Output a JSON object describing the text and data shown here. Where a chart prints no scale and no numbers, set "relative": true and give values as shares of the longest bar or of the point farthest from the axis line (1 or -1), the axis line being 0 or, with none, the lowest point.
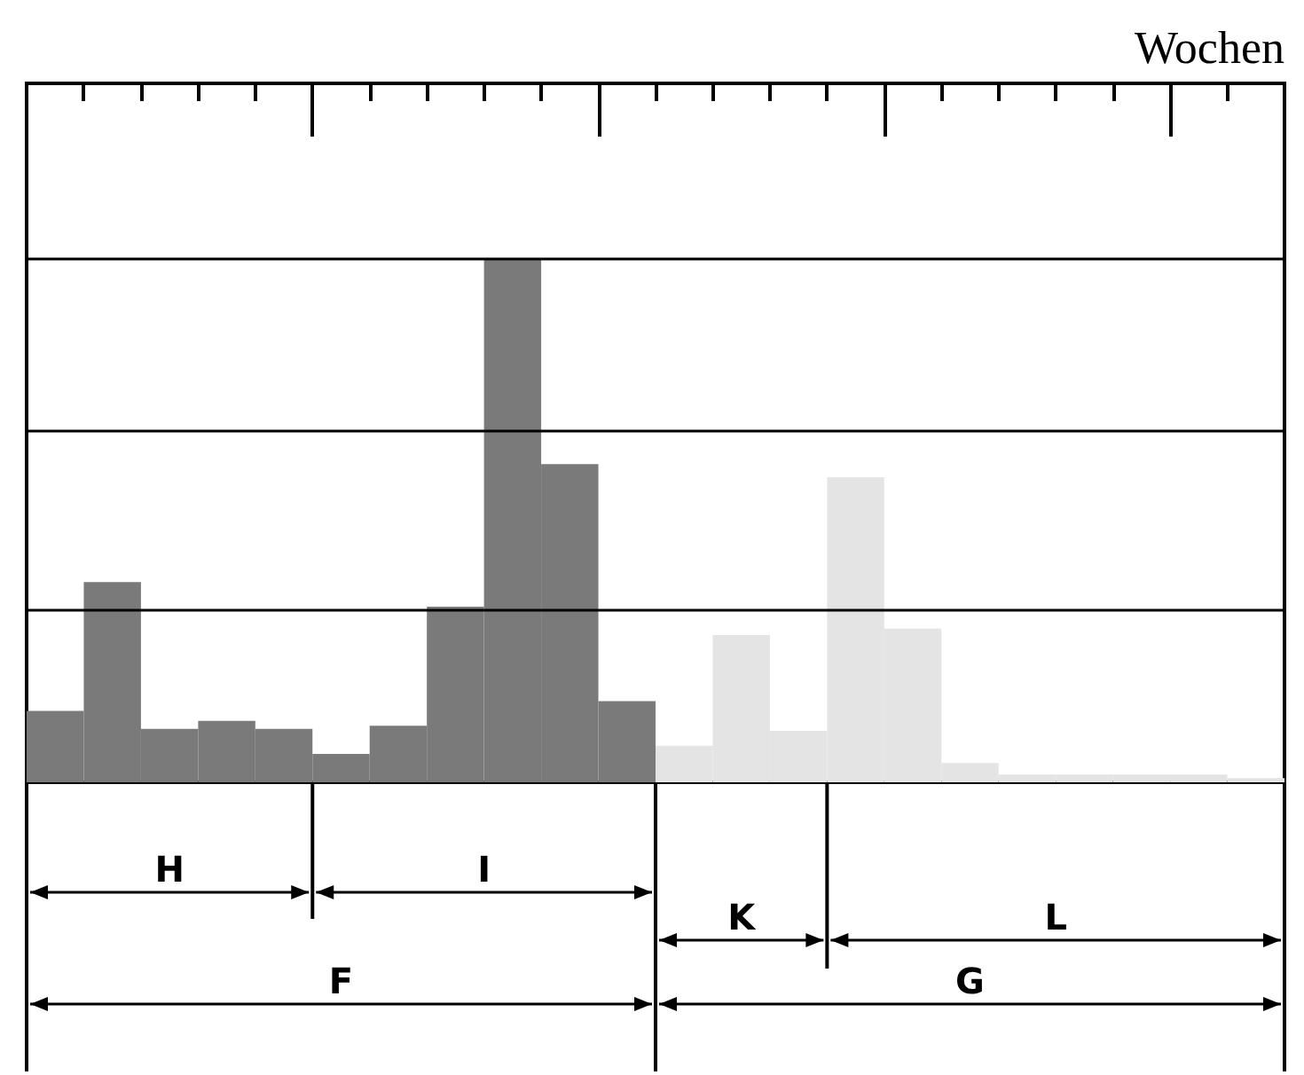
{
  "chart_data": {
    "type": "bar",
    "relative": true,
    "xlabel": "Wochen",
    "categories": [
      null,
      null,
      null,
      null,
      null,
      null,
      null,
      null,
      null,
      null,
      null,
      null,
      null,
      null,
      null,
      null,
      null,
      null,
      null,
      null,
      null,
      null
    ],
    "values": [
      0.136,
      0.382,
      0.102,
      0.117,
      0.102,
      0.054,
      0.108,
      0.335,
      1,
      0.607,
      0.155,
      0.07,
      0.281,
      0.098,
      0.582,
      0.293,
      0.037,
      0.015,
      0.015,
      0.015,
      0.015,
      0.008
    ],
    "colors": [
      "#7a7a7a",
      "#7a7a7a",
      "#7a7a7a",
      "#7a7a7a",
      "#7a7a7a",
      "#7a7a7a",
      "#7a7a7a",
      "#7a7a7a",
      "#7a7a7a",
      "#7a7a7a",
      "#7a7a7a",
      "#e4e4e4",
      "#e4e4e4",
      "#e4e4e4",
      "#e4e4e4",
      "#e4e4e4",
      "#e4e4e4",
      "#e4e4e4",
      "#e4e4e4",
      "#e4e4e4",
      "#e4e4e4",
      "#e4e4e4"
    ],
    "ref_lines": [
      {
        "axis": "y",
        "value": 0.333
      },
      {
        "axis": "y",
        "value": 0.667
      },
      {
        "axis": "y",
        "value": 1
      }
    ],
    "annotations": [
      "H",
      "I",
      "K",
      "L",
      "F",
      "G"
    ]
  }
}
